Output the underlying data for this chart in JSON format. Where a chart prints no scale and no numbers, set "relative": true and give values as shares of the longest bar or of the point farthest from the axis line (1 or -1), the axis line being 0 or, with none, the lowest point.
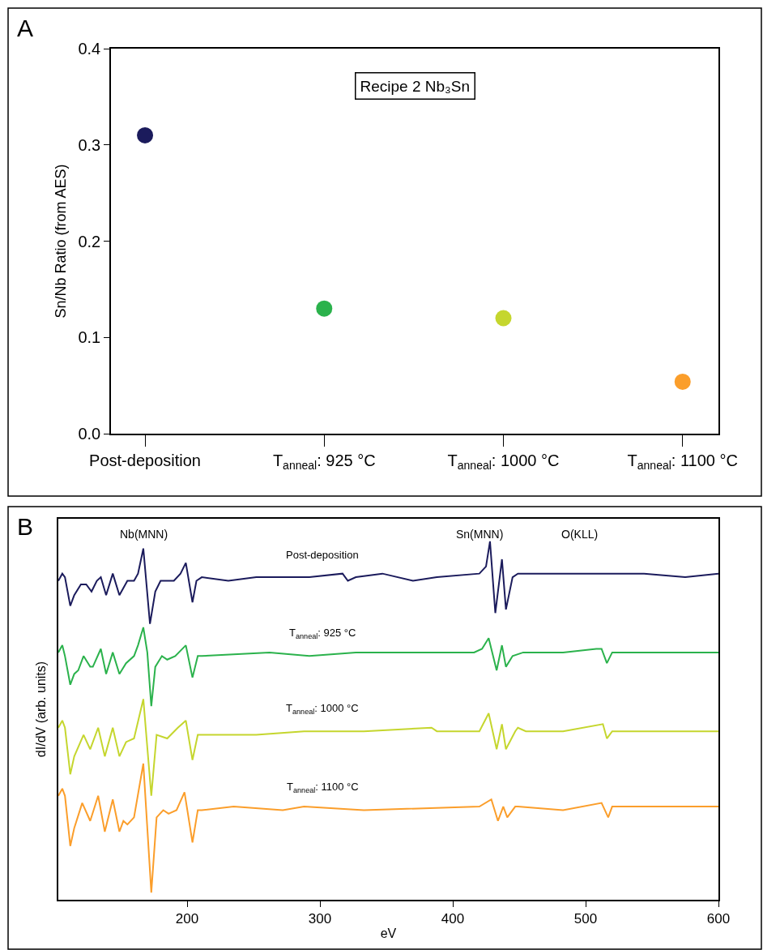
{
  "chart_data": [
    {
      "type": "scatter",
      "ylabel": "Sn/Nb Ratio (from AES)",
      "annotations": [
        "A",
        "Recipe 2 Nb₃Sn"
      ],
      "categories": [
        "Post-deposition",
        "T$_{anneal}$: 925 °C",
        "T$_{anneal}$: 1000 °C",
        "T$_{anneal}$: 1100 °C"
      ],
      "values": [
        0.31,
        0.13,
        0.12,
        0.054
      ],
      "colors": [
        "#1b1b5c",
        "#2bb24c",
        "#c5d62e",
        "#fb9e2b"
      ],
      "ylim": [
        0,
        0.4
      ],
      "yticks": [
        {
          "value": 0,
          "label": "0.0"
        },
        0.1,
        0.2,
        0.3,
        0.4
      ],
      "marker": "circle"
    },
    {
      "type": "line",
      "relative": true,
      "xlabel": "eV",
      "ylabel": "dI/dV (arb. units)",
      "tick_labels": "x",
      "annotations": [
        "B",
        "Nb(MNN)",
        "Sn(MNN)",
        "O(KLL)"
      ],
      "xlim": [
        103,
        600
      ],
      "xticks": [
        200,
        300,
        400,
        500,
        600
      ],
      "line_style": "solid",
      "series": [
        {
          "name": "Post-deposition",
          "color": "#1b1b5c",
          "x": [
            103,
            106,
            108,
            112,
            115,
            120,
            124,
            128,
            132,
            135,
            139,
            144,
            149,
            155,
            160,
            163,
            167,
            172,
            176,
            180,
            190,
            195,
            199,
            204,
            207,
            211,
            231,
            252,
            272,
            292,
            317,
            321,
            327,
            347,
            370,
            388,
            420,
            425,
            428,
            432,
            437,
            440,
            445,
            449,
            463,
            483,
            512,
            544,
            575,
            600
          ],
          "values": [
            0.89,
            0.91,
            0.9,
            0.82,
            0.85,
            0.88,
            0.88,
            0.86,
            0.89,
            0.9,
            0.85,
            0.91,
            0.85,
            0.89,
            0.89,
            0.91,
            0.98,
            0.77,
            0.86,
            0.89,
            0.89,
            0.91,
            0.94,
            0.83,
            0.89,
            0.9,
            0.89,
            0.9,
            0.9,
            0.9,
            0.91,
            0.89,
            0.9,
            0.91,
            0.89,
            0.9,
            0.91,
            0.93,
            1.0,
            0.8,
            0.95,
            0.81,
            0.9,
            0.91,
            0.91,
            0.91,
            0.91,
            0.91,
            0.9,
            0.91
          ]
        },
        {
          "name": "T$_{anneal}$: 925 °C",
          "color": "#2bb24c",
          "x": [
            103,
            106,
            108,
            112,
            115,
            118,
            122,
            127,
            129,
            135,
            139,
            144,
            149,
            154,
            160,
            163,
            167,
            170,
            173,
            176,
            181,
            185,
            191,
            199,
            204,
            208,
            211,
            262,
            292,
            327,
            388,
            416,
            422,
            427,
            433,
            437,
            440,
            445,
            453,
            483,
            508,
            512,
            516,
            520,
            555,
            600
          ],
          "values": [
            0.69,
            0.71,
            0.68,
            0.6,
            0.63,
            0.64,
            0.68,
            0.65,
            0.65,
            0.7,
            0.63,
            0.69,
            0.63,
            0.66,
            0.68,
            0.71,
            0.76,
            0.69,
            0.54,
            0.65,
            0.68,
            0.67,
            0.68,
            0.71,
            0.62,
            0.68,
            0.68,
            0.69,
            0.68,
            0.69,
            0.69,
            0.69,
            0.7,
            0.73,
            0.64,
            0.71,
            0.65,
            0.68,
            0.69,
            0.69,
            0.7,
            0.7,
            0.66,
            0.69,
            0.69,
            0.69
          ]
        },
        {
          "name": "T$_{anneal}$: 1000 °C",
          "color": "#c5d62e",
          "x": [
            103,
            106,
            108,
            112,
            115,
            122,
            127,
            133,
            138,
            144,
            149,
            154,
            160,
            167,
            173,
            177,
            185,
            193,
            199,
            204,
            208,
            211,
            252,
            288,
            333,
            384,
            388,
            420,
            427,
            433,
            437,
            440,
            447,
            449,
            455,
            483,
            513,
            516,
            520,
            565,
            600
          ],
          "values": [
            0.48,
            0.5,
            0.48,
            0.35,
            0.4,
            0.46,
            0.42,
            0.48,
            0.4,
            0.48,
            0.4,
            0.44,
            0.45,
            0.56,
            0.29,
            0.46,
            0.45,
            0.48,
            0.5,
            0.39,
            0.46,
            0.46,
            0.46,
            0.47,
            0.47,
            0.48,
            0.47,
            0.47,
            0.52,
            0.42,
            0.49,
            0.42,
            0.47,
            0.48,
            0.47,
            0.47,
            0.49,
            0.45,
            0.47,
            0.47,
            0.47
          ]
        },
        {
          "name": "T$_{anneal}$: 1100 °C",
          "color": "#fb9e2b",
          "x": [
            103,
            106,
            108,
            112,
            115,
            121,
            127,
            133,
            138,
            144,
            149,
            152,
            155,
            160,
            167,
            173,
            177,
            182,
            186,
            192,
            198,
            204,
            208,
            211,
            235,
            272,
            288,
            333,
            420,
            429,
            434,
            438,
            441,
            447,
            449,
            483,
            512,
            517,
            520,
            565,
            600
          ],
          "values": [
            0.29,
            0.31,
            0.29,
            0.15,
            0.2,
            0.27,
            0.22,
            0.29,
            0.19,
            0.28,
            0.19,
            0.22,
            0.21,
            0.23,
            0.38,
            0.02,
            0.23,
            0.25,
            0.24,
            0.25,
            0.3,
            0.16,
            0.25,
            0.25,
            0.26,
            0.25,
            0.26,
            0.25,
            0.26,
            0.28,
            0.22,
            0.26,
            0.23,
            0.26,
            0.26,
            0.25,
            0.27,
            0.23,
            0.26,
            0.26,
            0.26
          ]
        }
      ]
    }
  ]
}
